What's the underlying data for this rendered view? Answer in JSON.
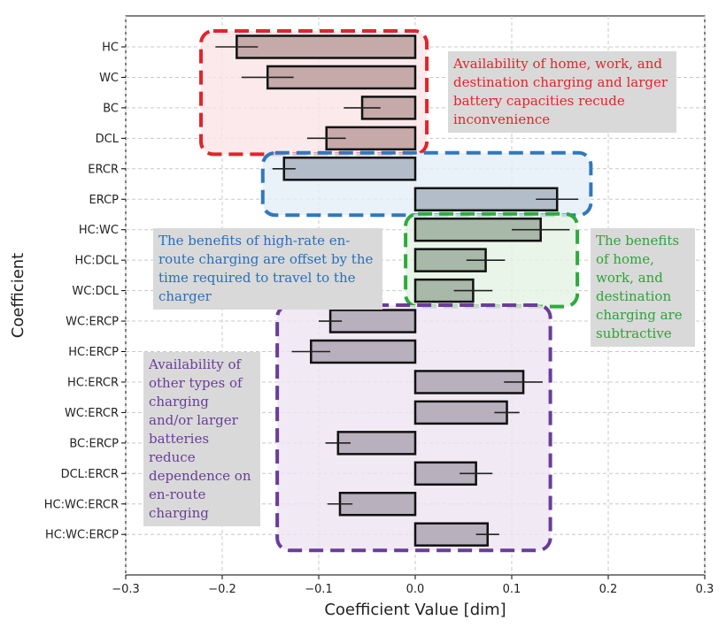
{
  "chart_data": {
    "type": "bar",
    "orientation": "horizontal",
    "xlabel": "Coefficient Value [dim]",
    "ylabel": "Coefficient",
    "xlim": [
      -0.3,
      0.3
    ],
    "xticks": [
      -0.3,
      -0.2,
      -0.1,
      0.0,
      0.1,
      0.2,
      0.3
    ],
    "xtick_labels": [
      "−0.3",
      "−0.2",
      "−0.1",
      "0.0",
      "0.1",
      "0.2",
      "0.3"
    ],
    "grid": true,
    "categories": [
      "HC",
      "WC",
      "BC",
      "DCL",
      "ERCR",
      "ERCP",
      "HC:WC",
      "HC:DCL",
      "WC:DCL",
      "WC:ERCP",
      "HC:ERCP",
      "HC:ERCR",
      "WC:ERCR",
      "BC:ERCP",
      "DCL:ERCR",
      "HC:WC:ERCR",
      "HC:WC:ERCP"
    ],
    "values": [
      -0.185,
      -0.153,
      -0.055,
      -0.092,
      -0.136,
      0.147,
      0.13,
      0.073,
      0.06,
      -0.088,
      -0.108,
      0.112,
      0.095,
      -0.08,
      0.063,
      -0.078,
      0.075
    ],
    "error": [
      0.022,
      0.027,
      0.019,
      0.02,
      0.012,
      0.022,
      0.03,
      0.02,
      0.02,
      0.012,
      0.02,
      0.02,
      0.013,
      0.013,
      0.017,
      0.013,
      0.012
    ],
    "bar_colors": [
      "#c6aaa9",
      "#c6aaa9",
      "#c6aaa9",
      "#c6aaa9",
      "#b3bcc9",
      "#b3bcc9",
      "#a9b9a9",
      "#a9b9a9",
      "#a9b9a9",
      "#b8b0bd",
      "#b8b0bd",
      "#b8b0bd",
      "#b8b0bd",
      "#b8b0bd",
      "#b8b0bd",
      "#b8b0bd",
      "#b8b0bd"
    ],
    "groups": [
      {
        "color": "#e0252b",
        "fill": "#fbe4e6",
        "label": "Availability of home, work, and destination charging and larger battery capacities recude inconvenience"
      },
      {
        "color": "#2f78bd",
        "fill": "#e3eef8",
        "label": "The benefits of high-rate en-route charging are offset by the time required to travel to the charger"
      },
      {
        "color": "#2eaa3c",
        "fill": "#e3f2e3",
        "label": "The benefits of home, work, and destination charging are subtractive"
      },
      {
        "color": "#6a3d9a",
        "fill": "#ede3f1",
        "label": "Availability of other types of charging and/or larger batteries reduce dependence on en-route charging"
      }
    ]
  }
}
